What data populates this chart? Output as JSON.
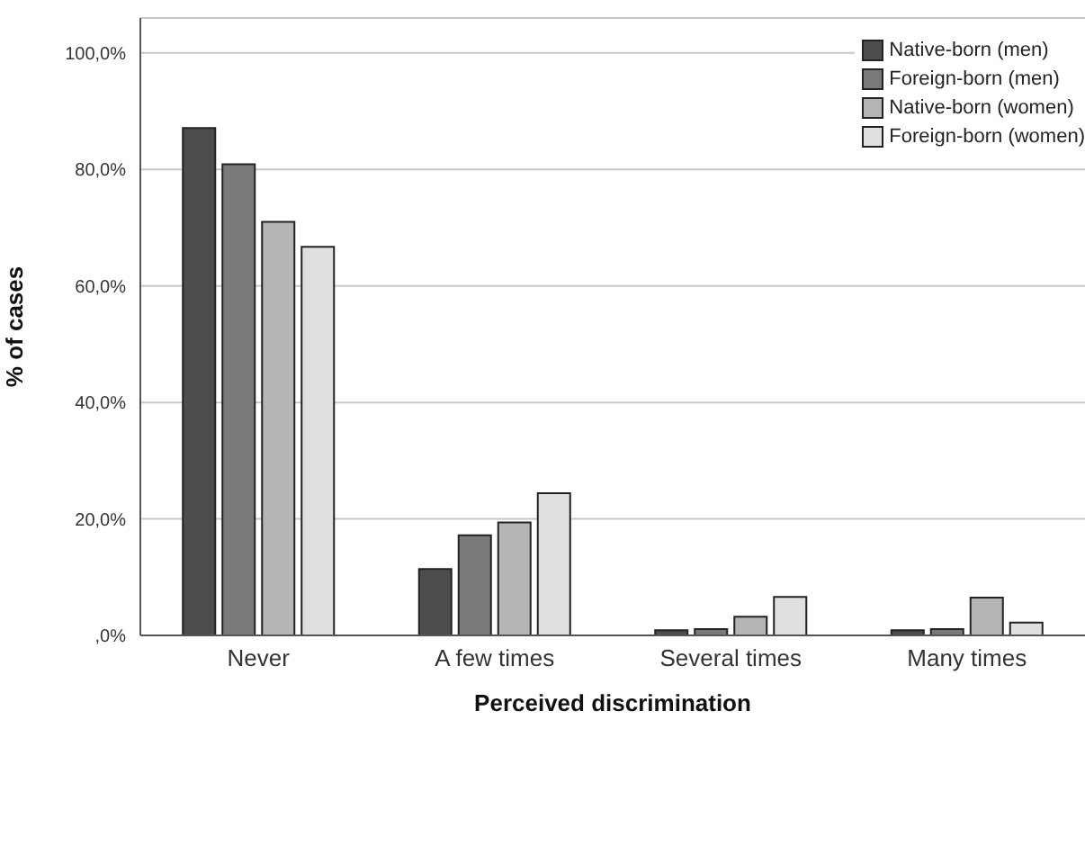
{
  "chart_data": {
    "type": "bar",
    "xlabel": "Perceived discrimination",
    "ylabel": "% of cases",
    "categories": [
      "Never",
      "A few times",
      "Several times",
      "Many times"
    ],
    "series": [
      {
        "name": "Native-born (men)",
        "color": "#4d4d4d",
        "values": [
          87.1,
          11.4,
          0.9,
          0.9
        ]
      },
      {
        "name": "Foreign-born (men)",
        "color": "#7a7a7a",
        "values": [
          80.9,
          17.2,
          1.1,
          1.1
        ]
      },
      {
        "name": "Native-born (women)",
        "color": "#b5b5b5",
        "values": [
          71.0,
          19.4,
          3.2,
          6.5
        ]
      },
      {
        "name": "Foreign-born (women)",
        "color": "#e0e0e0",
        "values": [
          66.7,
          24.4,
          6.6,
          2.2
        ]
      }
    ],
    "ylim": [
      0,
      106
    ],
    "yticks": [
      {
        "value": 0,
        "label": ",0%"
      },
      {
        "value": 20,
        "label": "20,0%"
      },
      {
        "value": 40,
        "label": "40,0%"
      },
      {
        "value": 60,
        "label": "60,0%"
      },
      {
        "value": 80,
        "label": "80,0%"
      },
      {
        "value": 100,
        "label": "100,0%"
      }
    ],
    "grid": "y",
    "legend": "top right"
  }
}
